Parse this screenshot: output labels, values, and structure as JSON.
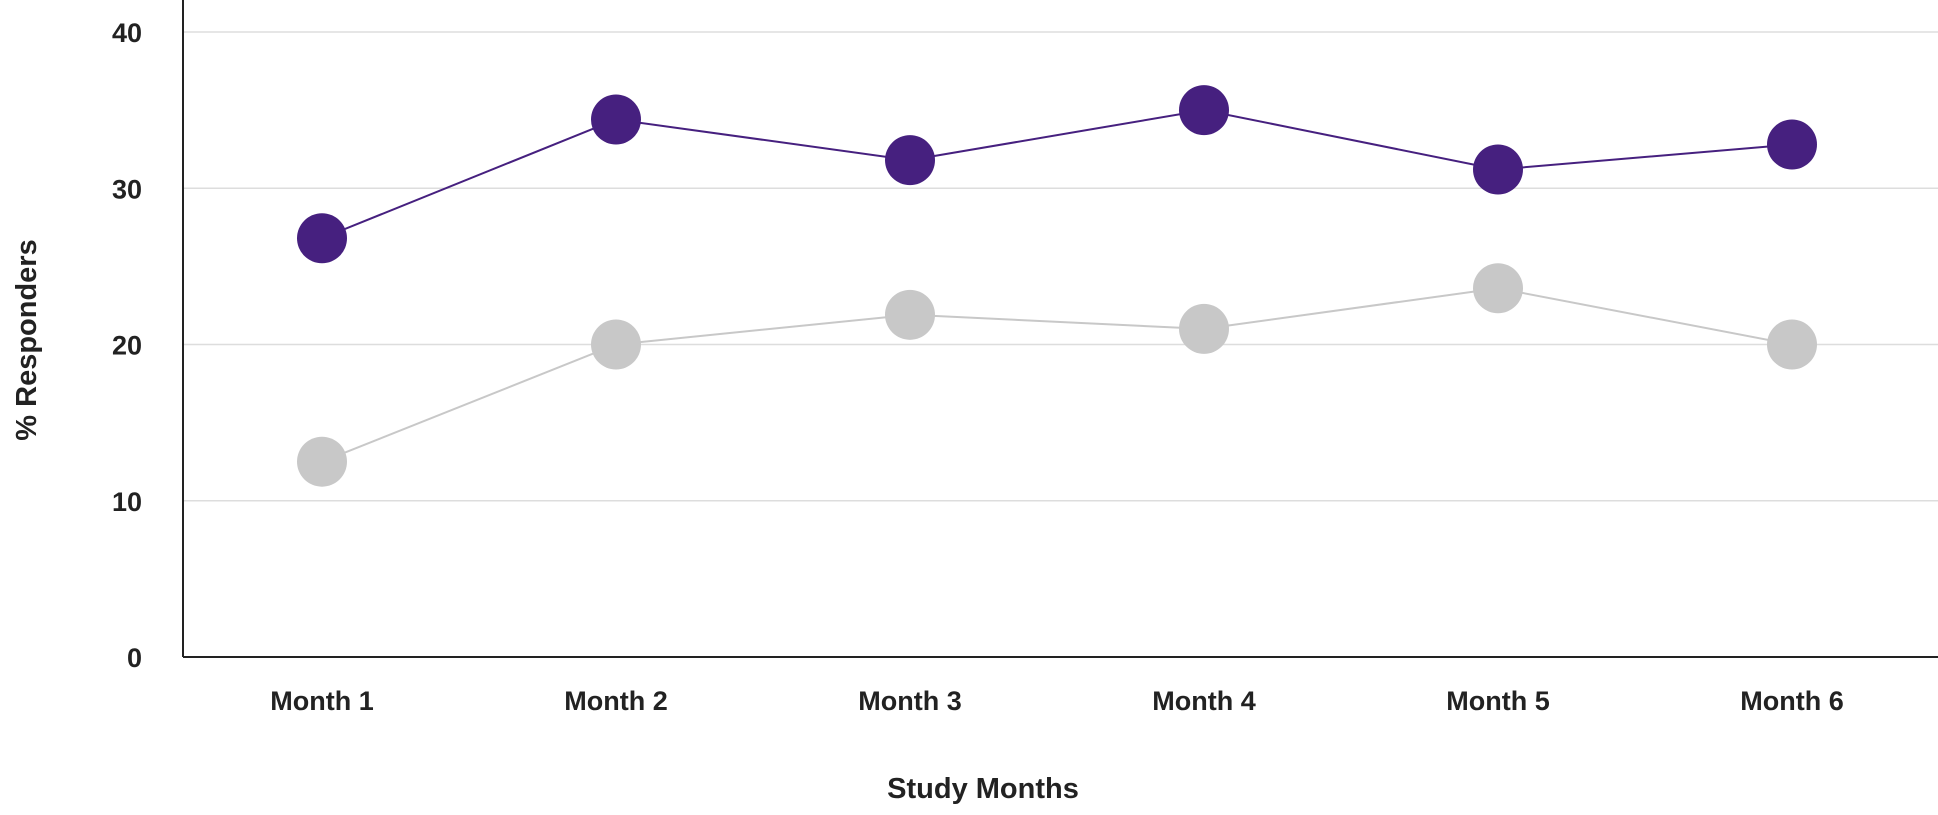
{
  "chart_data": {
    "type": "line",
    "categories": [
      "Month 1",
      "Month 2",
      "Month 3",
      "Month 4",
      "Month 5",
      "Month 6"
    ],
    "series": [
      {
        "values": [
          26.8,
          34.4,
          31.8,
          35.0,
          31.2,
          32.8
        ],
        "color": "#46207f"
      },
      {
        "values": [
          12.5,
          20.0,
          21.9,
          21.0,
          23.6,
          20.0
        ],
        "color": "#c8c8c8"
      }
    ],
    "xlabel": "Study Months",
    "ylabel": "% Responders",
    "ylim": [
      0,
      40
    ],
    "yticks": [
      0,
      10,
      20,
      30,
      40
    ],
    "grid": true
  }
}
